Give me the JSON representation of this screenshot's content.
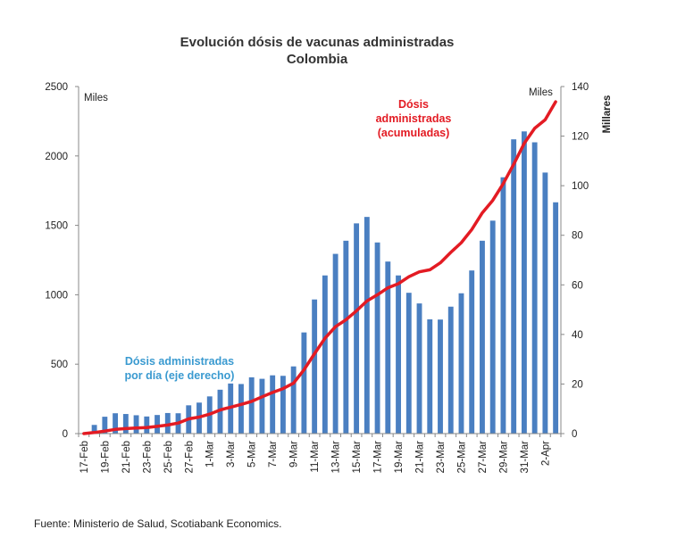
{
  "chart_data": {
    "type": "bar+line",
    "title_lines": [
      "Evolución  dósis de vacunas administradas",
      "Colombia"
    ],
    "x_dates": [
      "17-Feb",
      "18-Feb",
      "19-Feb",
      "20-Feb",
      "21-Feb",
      "22-Feb",
      "23-Feb",
      "24-Feb",
      "25-Feb",
      "26-Feb",
      "27-Feb",
      "28-Feb",
      "1-Mar",
      "2-Mar",
      "3-Mar",
      "4-Mar",
      "5-Mar",
      "6-Mar",
      "7-Mar",
      "8-Mar",
      "9-Mar",
      "10-Mar",
      "11-Mar",
      "12-Mar",
      "13-Mar",
      "14-Mar",
      "15-Mar",
      "16-Mar",
      "17-Mar",
      "18-Mar",
      "19-Mar",
      "20-Mar",
      "21-Mar",
      "22-Mar",
      "23-Mar",
      "24-Mar",
      "25-Mar",
      "26-Mar",
      "27-Mar",
      "28-Mar",
      "29-Mar",
      "30-Mar",
      "31-Mar",
      "1-Apr",
      "2-Apr",
      "3-Apr"
    ],
    "x_tick_labels": [
      "17-Feb",
      "19-Feb",
      "21-Feb",
      "23-Feb",
      "25-Feb",
      "27-Feb",
      "1-Mar",
      "3-Mar",
      "5-Mar",
      "7-Mar",
      "9-Mar",
      "11-Mar",
      "13-Mar",
      "15-Mar",
      "17-Mar",
      "19-Mar",
      "21-Mar",
      "23-Mar",
      "25-Mar",
      "27-Mar",
      "29-Mar",
      "31-Mar",
      "2-Apr"
    ],
    "left_axis": {
      "unit_label": "Miles",
      "ylim": [
        0,
        2500
      ],
      "ticks": [
        0,
        500,
        1000,
        1500,
        2000,
        2500
      ]
    },
    "right_axis": {
      "unit_label": "Miles",
      "axis_label": "Millares",
      "ylim": [
        0,
        140
      ],
      "ticks": [
        0,
        20,
        40,
        60,
        80,
        100,
        120,
        140
      ]
    },
    "series": [
      {
        "name": "Dósis administradas por día (eje derecho)",
        "kind": "bar",
        "axis": "right",
        "color": "#4a7fc1",
        "label_lines": [
          "Dósis administradas",
          "por día (eje derecho)"
        ],
        "values": [
          0,
          3.5,
          6.8,
          8.2,
          7.9,
          7.4,
          6.9,
          7.5,
          8.3,
          8.2,
          11.4,
          12.5,
          15.0,
          17.7,
          20.2,
          20.0,
          22.7,
          22.1,
          23.5,
          23.3,
          27.1,
          40.8,
          54.1,
          63.8,
          72.5,
          77.8,
          84.8,
          87.4,
          77.1,
          69.4,
          63.8,
          56.8,
          52.5,
          46.1,
          46.0,
          51.2,
          56.6,
          65.8,
          77.8,
          85.9,
          103.4,
          118.7,
          121.9,
          117.5,
          105.3,
          93.3
        ]
      },
      {
        "name": "Dósis administradas (acumuladas)",
        "kind": "line",
        "axis": "left",
        "color": "#e31b23",
        "label_lines": [
          "Dósis",
          "administradas",
          "(acumuladas)"
        ],
        "values": [
          0,
          8,
          18,
          30,
          36,
          40,
          44,
          52,
          62,
          76,
          106,
          119,
          140,
          170,
          190,
          210,
          232,
          265,
          296,
          324,
          364,
          460,
          575,
          687,
          770,
          820,
          884,
          955,
          1000,
          1050,
          1080,
          1130,
          1165,
          1180,
          1230,
          1305,
          1375,
          1470,
          1590,
          1680,
          1800,
          1940,
          2090,
          2200,
          2260,
          2390
        ]
      }
    ],
    "source": "Fuente: Ministerio de Salud, Scotiabank Economics."
  }
}
